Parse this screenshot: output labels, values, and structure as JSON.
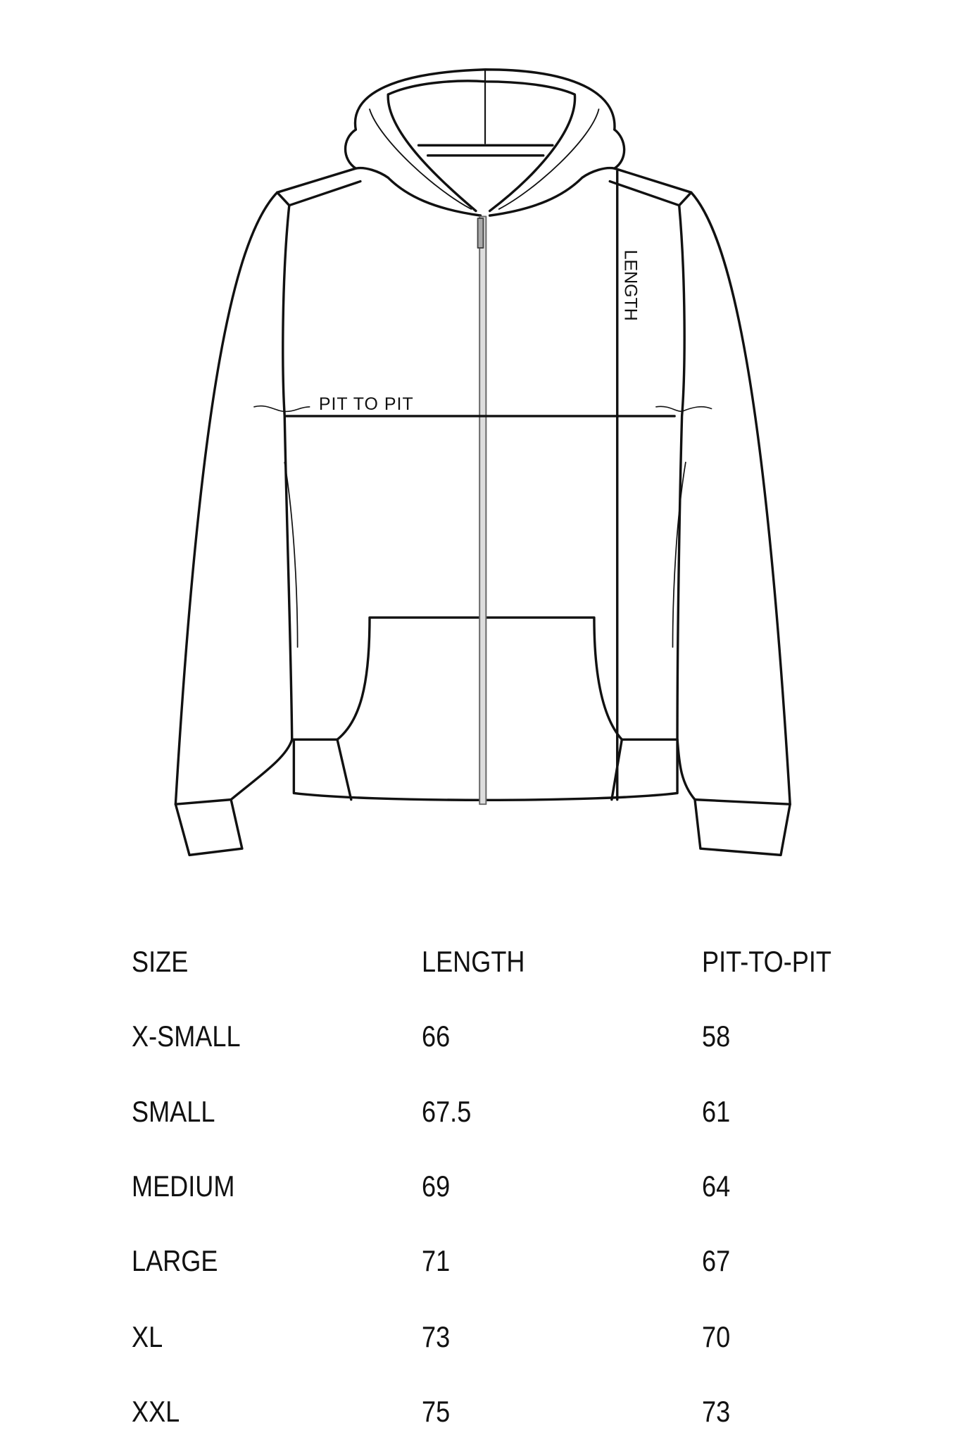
{
  "diagram": {
    "labels": {
      "length": "LENGTH",
      "pit_to_pit": "PIT TO PIT"
    },
    "line_color": "#111111"
  },
  "size_table": {
    "headers": [
      "SIZE",
      "LENGTH",
      "PIT-TO-PIT"
    ],
    "rows": [
      [
        "X-SMALL",
        "66",
        "58"
      ],
      [
        "SMALL",
        "67.5",
        "61"
      ],
      [
        "MEDIUM",
        "69",
        "64"
      ],
      [
        "LARGE",
        "71",
        "67"
      ],
      [
        "XL",
        "73",
        "70"
      ],
      [
        "XXL",
        "75",
        "73"
      ]
    ]
  }
}
